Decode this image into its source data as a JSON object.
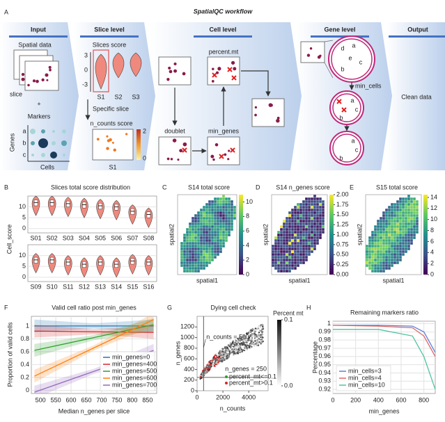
{
  "panel_labels": [
    "A",
    "B",
    "C",
    "D",
    "E",
    "F",
    "G",
    "H"
  ],
  "workflow": {
    "title": "SpatialQC workflow",
    "columns": [
      "Input",
      "Slice level",
      "Cell level",
      "Gene level",
      "Output"
    ],
    "input": {
      "spatial": "Spatial data",
      "slice": "slice",
      "plus": "+",
      "markers": "Markers",
      "genes": "Genes",
      "cells": "Cells",
      "gene_names": [
        "a",
        "b",
        "c"
      ]
    },
    "slice_level": {
      "title": "Slices score",
      "slices": [
        "S1",
        "S2",
        "S3"
      ],
      "yticks": [
        "3",
        "0",
        "-3"
      ],
      "specific": "Specific slice",
      "ncounts": "n_counts score",
      "slice": "S1",
      "scale": [
        "2",
        "0"
      ]
    },
    "cell_level": {
      "percent_mt": "percent.mt",
      "doublet": "doublet",
      "min_genes": "min_genes"
    },
    "gene_level": {
      "min_cells": "min_cells",
      "letters": [
        "a",
        "b",
        "c",
        "d",
        "e"
      ]
    },
    "output": "Clean data"
  },
  "chart_data": [
    {
      "type": "violin",
      "title": "Slices total score distribution",
      "y_label": "Cell_score",
      "categories": [
        "S01",
        "S02",
        "S03",
        "S04",
        "S05",
        "S06",
        "S07",
        "S08",
        "S09",
        "S10",
        "S11",
        "S12",
        "S13",
        "S14",
        "S15",
        "S16"
      ],
      "values": [
        12,
        12,
        11.5,
        11,
        10.5,
        10,
        8,
        6.5,
        8,
        8,
        7,
        6,
        7,
        6,
        7.5,
        7
      ],
      "ylim": [
        -2,
        15
      ],
      "yticks": [
        0,
        5,
        10
      ],
      "color": "#f0897d"
    },
    {
      "type": "spatial",
      "title": "S14 total score",
      "x_label": "spatial1",
      "y_label": "spatial2",
      "clim": [
        0,
        11
      ],
      "cticks": [
        0,
        2,
        4,
        6,
        8,
        10
      ],
      "colormap": "viridis"
    },
    {
      "type": "spatial",
      "title": "S14 n_genes score",
      "x_label": "spatial1",
      "y_label": "spatial2",
      "clim": [
        0,
        2
      ],
      "cticks": [
        {
          "value": 0,
          "label": "0.00"
        },
        {
          "value": 0.25,
          "label": "0.25"
        },
        {
          "value": 0.5,
          "label": "0.50"
        },
        {
          "value": 0.75,
          "label": "0.75"
        },
        {
          "value": 1,
          "label": "1.00"
        },
        {
          "value": 1.25,
          "label": "1.25"
        },
        {
          "value": 1.5,
          "label": "1.50"
        },
        {
          "value": 1.75,
          "label": "1.75"
        },
        {
          "value": 2,
          "label": "2.00"
        }
      ],
      "colormap": "viridis"
    },
    {
      "type": "spatial",
      "title": "S15 total score",
      "x_label": "spatial1",
      "y_label": "spatial2",
      "clim": [
        0,
        14.5
      ],
      "cticks": [
        0,
        2,
        4,
        6,
        8,
        10,
        12,
        14
      ],
      "colormap": "viridis"
    },
    {
      "type": "line",
      "title": "Valid cell ratio post min_genes",
      "x_label": "Median n_genes per slice",
      "y_label": "Proportion of valid cells",
      "x": [
        480,
        870
      ],
      "series": [
        {
          "name": "min_genes=0",
          "color": "#1f77b4",
          "values": [
            1,
            1
          ]
        },
        {
          "name": "min_genes=400",
          "color": "#d62728",
          "values": [
            0.92,
            0.9
          ]
        },
        {
          "name": "min_genes=500",
          "color": "#2ca02c",
          "values": [
            0.62,
            1.02
          ]
        },
        {
          "name": "min_genes=600",
          "color": "#ff7f0e",
          "values": [
            0.22,
            1.1
          ]
        },
        {
          "name": "min_genes=700",
          "color": "#9467bd",
          "values": [
            -0.03,
            0.62
          ]
        }
      ],
      "xlim": [
        470,
        880
      ],
      "ylim": [
        -0.05,
        1.15
      ],
      "xticks": [
        500,
        550,
        600,
        650,
        700,
        750,
        800,
        850
      ],
      "yticks": [
        0,
        0.2,
        0.4,
        0.6,
        0.8,
        1
      ],
      "grid": true,
      "legend": "lower right"
    },
    {
      "type": "scatter",
      "title": "Dying cell check",
      "x_label": "n_counts",
      "y_label": "n_genes",
      "xlim": [
        0,
        5500
      ],
      "ylim": [
        0,
        1400
      ],
      "xticks": [
        0,
        2000,
        4000
      ],
      "yticks": [
        0,
        200,
        400,
        600,
        800,
        1000,
        1200
      ],
      "annotations": [
        "n_counts = 500",
        "n_genes = 250"
      ],
      "x_threshold": 500,
      "y_threshold": 250,
      "series": [
        {
          "name": "percent_mt<=0.1",
          "color": "#2ca02c"
        },
        {
          "name": "percent_mt>0.1",
          "color": "#d62728"
        }
      ],
      "colorbar_title": "Percent mt",
      "clim": [
        0,
        0.1
      ],
      "cticks": [
        {
          "value": 0,
          "label": "0.0"
        },
        0.1
      ],
      "legend": "lower right"
    },
    {
      "type": "line",
      "title": "Remaining markers ratio",
      "x_label": "min_genes",
      "y_label": "Percentage",
      "x": [
        0,
        400,
        700,
        800,
        900
      ],
      "series": [
        {
          "name": "min_cells=3",
          "color": "#5b7fd6",
          "values": [
            0.998,
            0.998,
            0.997,
            0.99,
            0.965
          ]
        },
        {
          "name": "min_cells=4",
          "color": "#e06666",
          "values": [
            0.998,
            0.997,
            0.995,
            0.985,
            0.96
          ]
        },
        {
          "name": "min_cells=10",
          "color": "#4fc3a1",
          "values": [
            0.993,
            0.993,
            0.985,
            0.96,
            0.92
          ]
        }
      ],
      "xlim": [
        0,
        900
      ],
      "ylim": [
        0.915,
        1.003
      ],
      "xticks": [
        0,
        200,
        400,
        600,
        800
      ],
      "yticks": [
        0.92,
        0.93,
        0.94,
        0.95,
        0.96,
        0.97,
        0.98,
        0.99,
        1
      ],
      "grid": true,
      "legend": "lower left"
    }
  ]
}
